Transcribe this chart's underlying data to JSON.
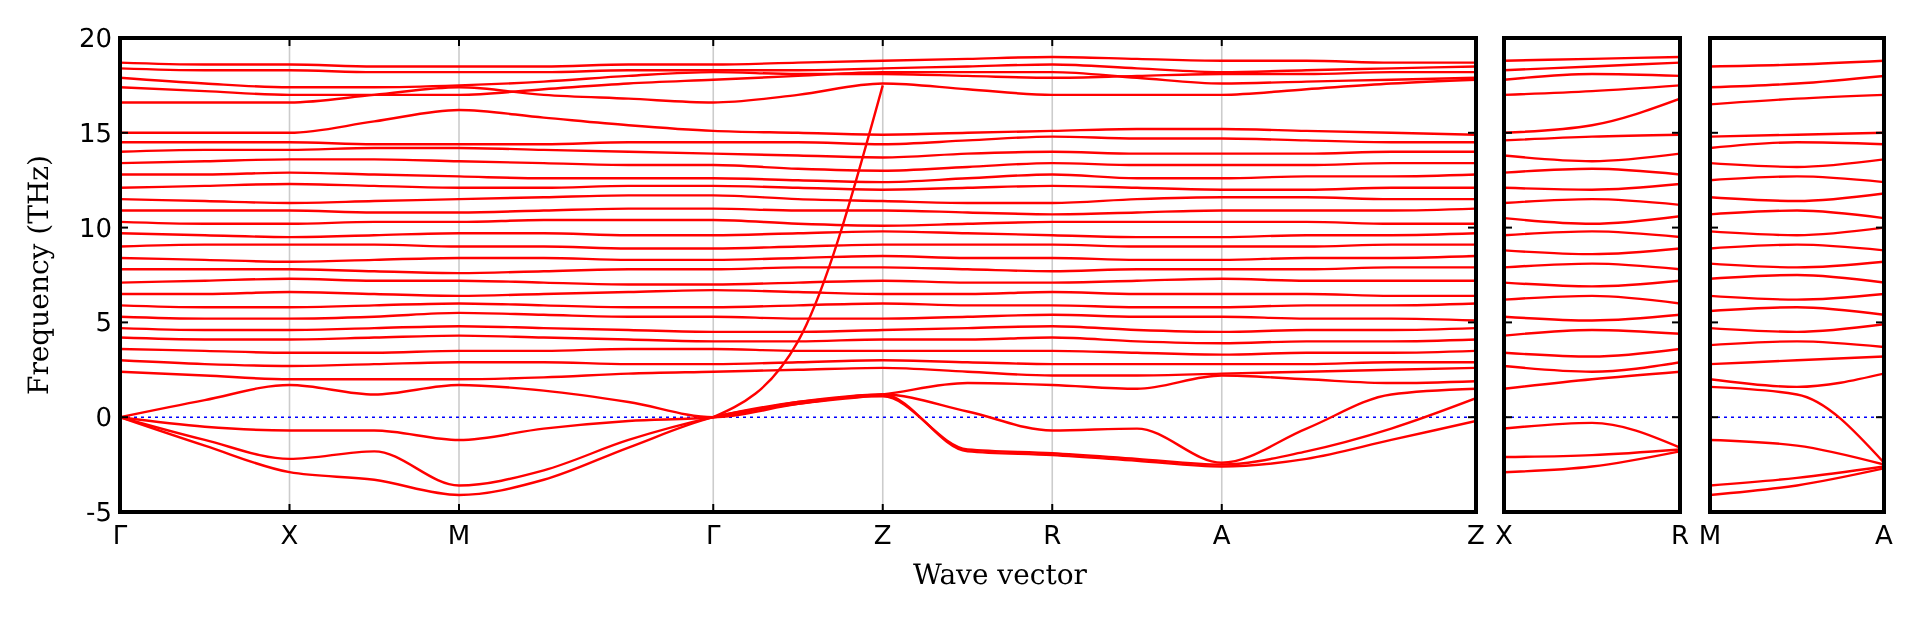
{
  "chart_data": [
    {
      "type": "line",
      "xlabel": "Wave vector",
      "ylabel": "Frequency (THz)",
      "ylim": [
        -5,
        20
      ],
      "yticks": [
        -5,
        0,
        5,
        10,
        15,
        20
      ],
      "categories": [
        "Γ",
        null,
        "X",
        null,
        "M",
        null,
        null,
        "Γ",
        null,
        "Z",
        null,
        "R",
        null,
        "A",
        null,
        null,
        "Z"
      ],
      "grid": "x",
      "ref_lines": [
        {
          "axis": "y",
          "value": 0,
          "color": "#0000ff",
          "line_style": "dotted"
        }
      ],
      "series": [
        {
          "color": "#ff0000",
          "values": [
            18.7,
            18.6,
            18.6,
            18.5,
            18.5,
            18.5,
            18.6,
            18.6,
            18.7,
            18.8,
            18.9,
            19.0,
            18.9,
            18.8,
            18.8,
            18.7,
            18.7
          ]
        },
        {
          "color": "#ff0000",
          "values": [
            18.4,
            18.3,
            18.3,
            18.2,
            18.2,
            18.2,
            18.3,
            18.3,
            18.3,
            18.4,
            18.5,
            18.6,
            18.4,
            18.2,
            18.3,
            18.4,
            18.5
          ]
        },
        {
          "color": "#ff0000",
          "values": [
            17.9,
            17.6,
            17.4,
            17.4,
            17.5,
            17.7,
            18.0,
            18.2,
            18.1,
            18.1,
            18.0,
            17.9,
            18.0,
            18.1,
            18.1,
            18.2,
            18.2
          ]
        },
        {
          "color": "#ff0000",
          "values": [
            17.4,
            17.2,
            17.0,
            17.0,
            17.0,
            17.3,
            17.6,
            17.8,
            18.0,
            18.2,
            18.2,
            18.2,
            17.9,
            17.6,
            17.7,
            17.8,
            17.9
          ]
        },
        {
          "color": "#ff0000",
          "values": [
            16.6,
            16.6,
            16.6,
            17.0,
            17.4,
            17.0,
            16.8,
            16.6,
            17.0,
            17.6,
            17.3,
            17.0,
            17.0,
            17.0,
            17.3,
            17.6,
            17.8
          ]
        },
        {
          "color": "#ff0000",
          "values": [
            15.0,
            15.0,
            15.0,
            15.6,
            16.2,
            15.8,
            15.4,
            15.1,
            15.0,
            14.9,
            15.0,
            15.1,
            15.2,
            15.2,
            15.1,
            15.0,
            14.9
          ]
        },
        {
          "color": "#ff0000",
          "values": [
            14.5,
            14.5,
            14.5,
            14.4,
            14.4,
            14.4,
            14.5,
            14.5,
            14.5,
            14.4,
            14.6,
            14.8,
            14.7,
            14.7,
            14.6,
            14.5,
            14.5
          ]
        },
        {
          "color": "#ff0000",
          "values": [
            14.0,
            14.1,
            14.1,
            14.2,
            14.2,
            14.1,
            14.0,
            13.9,
            13.8,
            13.7,
            13.9,
            14.0,
            13.9,
            13.9,
            13.9,
            14.0,
            14.0
          ]
        },
        {
          "color": "#ff0000",
          "values": [
            13.4,
            13.5,
            13.6,
            13.6,
            13.5,
            13.4,
            13.3,
            13.3,
            13.1,
            13.0,
            13.2,
            13.4,
            13.3,
            13.3,
            13.3,
            13.4,
            13.4
          ]
        },
        {
          "color": "#ff0000",
          "values": [
            12.8,
            12.8,
            12.9,
            12.8,
            12.7,
            12.6,
            12.6,
            12.6,
            12.5,
            12.4,
            12.6,
            12.8,
            12.6,
            12.6,
            12.7,
            12.7,
            12.8
          ]
        },
        {
          "color": "#ff0000",
          "values": [
            12.1,
            12.2,
            12.3,
            12.2,
            12.1,
            12.1,
            12.2,
            12.2,
            12.1,
            12.0,
            12.1,
            12.2,
            12.1,
            12.0,
            12.0,
            12.1,
            12.1
          ]
        },
        {
          "color": "#ff0000",
          "values": [
            11.5,
            11.4,
            11.3,
            11.4,
            11.5,
            11.6,
            11.7,
            11.7,
            11.5,
            11.4,
            11.3,
            11.3,
            11.5,
            11.6,
            11.6,
            11.5,
            11.5
          ]
        },
        {
          "color": "#ff0000",
          "values": [
            10.9,
            10.9,
            10.9,
            10.8,
            10.8,
            10.9,
            11.0,
            11.0,
            10.9,
            10.9,
            10.8,
            10.7,
            10.8,
            10.9,
            10.9,
            10.9,
            11.0
          ]
        },
        {
          "color": "#ff0000",
          "values": [
            10.3,
            10.2,
            10.2,
            10.3,
            10.3,
            10.4,
            10.4,
            10.4,
            10.2,
            10.1,
            10.2,
            10.3,
            10.3,
            10.3,
            10.3,
            10.2,
            10.2
          ]
        },
        {
          "color": "#ff0000",
          "values": [
            9.7,
            9.6,
            9.5,
            9.6,
            9.7,
            9.7,
            9.6,
            9.6,
            9.7,
            9.8,
            9.7,
            9.6,
            9.5,
            9.5,
            9.6,
            9.6,
            9.7
          ]
        },
        {
          "color": "#ff0000",
          "values": [
            9.0,
            9.1,
            9.1,
            9.1,
            9.0,
            9.0,
            8.9,
            8.9,
            9.0,
            9.1,
            9.1,
            9.1,
            9.0,
            9.0,
            9.0,
            9.1,
            9.1
          ]
        },
        {
          "color": "#ff0000",
          "values": [
            8.4,
            8.3,
            8.2,
            8.3,
            8.4,
            8.4,
            8.3,
            8.3,
            8.4,
            8.5,
            8.4,
            8.4,
            8.3,
            8.3,
            8.4,
            8.4,
            8.5
          ]
        },
        {
          "color": "#ff0000",
          "values": [
            7.8,
            7.8,
            7.8,
            7.7,
            7.6,
            7.7,
            7.8,
            7.8,
            7.9,
            7.9,
            7.8,
            7.7,
            7.8,
            7.8,
            7.8,
            7.9,
            7.9
          ]
        },
        {
          "color": "#ff0000",
          "values": [
            7.1,
            7.2,
            7.3,
            7.2,
            7.2,
            7.1,
            7.0,
            7.0,
            7.1,
            7.2,
            7.1,
            7.1,
            7.2,
            7.3,
            7.2,
            7.2,
            7.2
          ]
        },
        {
          "color": "#ff0000",
          "values": [
            6.5,
            6.5,
            6.6,
            6.5,
            6.4,
            6.5,
            6.6,
            6.7,
            6.6,
            6.5,
            6.5,
            6.6,
            6.5,
            6.5,
            6.5,
            6.4,
            6.4
          ]
        },
        {
          "color": "#ff0000",
          "values": [
            5.9,
            5.8,
            5.8,
            5.9,
            6.0,
            5.9,
            5.8,
            5.8,
            5.9,
            6.0,
            5.9,
            5.9,
            5.8,
            5.8,
            5.9,
            5.9,
            6.0
          ]
        },
        {
          "color": "#ff0000",
          "values": [
            5.3,
            5.2,
            5.2,
            5.3,
            5.5,
            5.4,
            5.3,
            5.3,
            5.2,
            5.2,
            5.3,
            5.4,
            5.3,
            5.3,
            5.2,
            5.2,
            5.1
          ]
        },
        {
          "color": "#ff0000",
          "values": [
            4.7,
            4.6,
            4.6,
            4.7,
            4.8,
            4.7,
            4.6,
            4.5,
            4.5,
            4.6,
            4.7,
            4.8,
            4.6,
            4.5,
            4.6,
            4.6,
            4.7
          ]
        },
        {
          "color": "#ff0000",
          "values": [
            4.2,
            4.1,
            4.1,
            4.2,
            4.3,
            4.2,
            4.1,
            4.0,
            4.0,
            4.1,
            4.1,
            4.2,
            4.0,
            3.9,
            4.0,
            4.0,
            4.1
          ]
        },
        {
          "color": "#ff0000",
          "values": [
            3.6,
            3.5,
            3.4,
            3.4,
            3.5,
            3.5,
            3.6,
            3.6,
            3.5,
            3.5,
            3.5,
            3.5,
            3.4,
            3.3,
            3.4,
            3.4,
            3.5
          ]
        },
        {
          "color": "#ff0000",
          "values": [
            3.0,
            2.8,
            2.7,
            2.8,
            2.9,
            2.9,
            2.8,
            2.8,
            2.9,
            3.0,
            2.9,
            2.8,
            2.8,
            2.8,
            2.8,
            2.9,
            2.9
          ]
        },
        {
          "color": "#ff0000",
          "values": [
            2.4,
            2.2,
            2.0,
            2.0,
            2.0,
            2.1,
            2.3,
            2.4,
            2.5,
            2.6,
            2.4,
            2.2,
            2.2,
            2.3,
            2.4,
            2.5,
            2.6
          ]
        },
        {
          "color": "#ff0000",
          "values": [
            null,
            null,
            null,
            null,
            null,
            null,
            null,
            0,
            4,
            17.5,
            null,
            null,
            null,
            null,
            null,
            null,
            null
          ]
        },
        {
          "color": "#ff0000",
          "values": [
            0,
            0.9,
            1.7,
            1.2,
            1.7,
            1.4,
            0.8,
            0,
            0.7,
            1.2,
            1.8,
            1.7,
            1.5,
            2.2,
            2.0,
            1.8,
            1.9
          ]
        },
        {
          "color": "#ff0000",
          "values": [
            0,
            -0.5,
            -0.7,
            -0.7,
            -1.2,
            -0.6,
            -0.2,
            0,
            0.8,
            1.2,
            0.3,
            -0.7,
            -0.6,
            -2.4,
            -0.6,
            1.2,
            1.5
          ]
        },
        {
          "color": "#ff0000",
          "values": [
            0,
            -1.2,
            -2.2,
            -1.8,
            -3.6,
            -2.8,
            -1.2,
            0,
            0.8,
            1.1,
            -1.7,
            -1.9,
            -2.2,
            -2.5,
            -1.8,
            -0.6,
            1.0
          ]
        },
        {
          "color": "#ff0000",
          "values": [
            0,
            -1.5,
            -2.9,
            -3.3,
            -4.1,
            -3.3,
            -1.6,
            0,
            0.7,
            1.2,
            -1.8,
            -2.0,
            -2.3,
            -2.6,
            -2.2,
            -1.2,
            -0.2
          ]
        }
      ]
    },
    {
      "type": "line",
      "ylim": [
        -5,
        20
      ],
      "yticks": [
        -5,
        0,
        5,
        10,
        15,
        20
      ],
      "tick_labels": "x",
      "categories": [
        "X",
        null,
        "R"
      ],
      "ref_lines": [
        {
          "axis": "y",
          "value": 0,
          "color": "#0000ff",
          "line_style": "dotted"
        }
      ],
      "series": [
        {
          "color": "#ff0000",
          "values": [
            18.8,
            18.9,
            19.0
          ]
        },
        {
          "color": "#ff0000",
          "values": [
            18.3,
            18.5,
            18.7
          ]
        },
        {
          "color": "#ff0000",
          "values": [
            17.8,
            18.1,
            18.0
          ]
        },
        {
          "color": "#ff0000",
          "values": [
            17.0,
            17.2,
            17.5
          ]
        },
        {
          "color": "#ff0000",
          "values": [
            15.0,
            15.4,
            16.8
          ]
        },
        {
          "color": "#ff0000",
          "values": [
            14.6,
            14.8,
            14.9
          ]
        },
        {
          "color": "#ff0000",
          "values": [
            13.8,
            13.5,
            13.9
          ]
        },
        {
          "color": "#ff0000",
          "values": [
            12.9,
            13.1,
            12.8
          ]
        },
        {
          "color": "#ff0000",
          "values": [
            12.1,
            12.0,
            12.3
          ]
        },
        {
          "color": "#ff0000",
          "values": [
            11.3,
            11.5,
            11.2
          ]
        },
        {
          "color": "#ff0000",
          "values": [
            10.5,
            10.2,
            10.6
          ]
        },
        {
          "color": "#ff0000",
          "values": [
            9.6,
            9.8,
            9.5
          ]
        },
        {
          "color": "#ff0000",
          "values": [
            8.8,
            8.6,
            8.9
          ]
        },
        {
          "color": "#ff0000",
          "values": [
            7.9,
            8.1,
            7.8
          ]
        },
        {
          "color": "#ff0000",
          "values": [
            7.1,
            6.9,
            7.2
          ]
        },
        {
          "color": "#ff0000",
          "values": [
            6.2,
            6.4,
            6.0
          ]
        },
        {
          "color": "#ff0000",
          "values": [
            5.3,
            5.1,
            5.4
          ]
        },
        {
          "color": "#ff0000",
          "values": [
            4.3,
            4.6,
            4.4
          ]
        },
        {
          "color": "#ff0000",
          "values": [
            3.4,
            3.2,
            3.6
          ]
        },
        {
          "color": "#ff0000",
          "values": [
            2.7,
            2.4,
            2.9
          ]
        },
        {
          "color": "#ff0000",
          "values": [
            1.5,
            2.0,
            2.4
          ]
        },
        {
          "color": "#ff0000",
          "values": [
            -0.6,
            -0.3,
            -1.6
          ]
        },
        {
          "color": "#ff0000",
          "values": [
            -2.1,
            -2.0,
            -1.7
          ]
        },
        {
          "color": "#ff0000",
          "values": [
            -2.9,
            -2.6,
            -1.8
          ]
        }
      ]
    },
    {
      "type": "line",
      "ylim": [
        -5,
        20
      ],
      "yticks": [
        -5,
        0,
        5,
        10,
        15,
        20
      ],
      "tick_labels": "x",
      "categories": [
        "M",
        null,
        "A"
      ],
      "ref_lines": [
        {
          "axis": "y",
          "value": 0,
          "color": "#0000ff",
          "line_style": "dotted"
        }
      ],
      "series": [
        {
          "color": "#ff0000",
          "values": [
            18.5,
            18.6,
            18.8
          ]
        },
        {
          "color": "#ff0000",
          "values": [
            17.4,
            17.6,
            18.0
          ]
        },
        {
          "color": "#ff0000",
          "values": [
            16.5,
            16.8,
            17.0
          ]
        },
        {
          "color": "#ff0000",
          "values": [
            14.8,
            14.9,
            15.0
          ]
        },
        {
          "color": "#ff0000",
          "values": [
            14.2,
            14.5,
            14.4
          ]
        },
        {
          "color": "#ff0000",
          "values": [
            13.4,
            13.2,
            13.6
          ]
        },
        {
          "color": "#ff0000",
          "values": [
            12.5,
            12.7,
            12.4
          ]
        },
        {
          "color": "#ff0000",
          "values": [
            11.6,
            11.4,
            11.8
          ]
        },
        {
          "color": "#ff0000",
          "values": [
            10.7,
            10.9,
            10.5
          ]
        },
        {
          "color": "#ff0000",
          "values": [
            9.8,
            9.6,
            10.0
          ]
        },
        {
          "color": "#ff0000",
          "values": [
            8.9,
            9.1,
            8.8
          ]
        },
        {
          "color": "#ff0000",
          "values": [
            8.1,
            7.9,
            8.2
          ]
        },
        {
          "color": "#ff0000",
          "values": [
            7.3,
            7.5,
            7.1
          ]
        },
        {
          "color": "#ff0000",
          "values": [
            6.4,
            6.2,
            6.5
          ]
        },
        {
          "color": "#ff0000",
          "values": [
            5.6,
            5.8,
            5.4
          ]
        },
        {
          "color": "#ff0000",
          "values": [
            4.7,
            4.5,
            4.9
          ]
        },
        {
          "color": "#ff0000",
          "values": [
            3.8,
            4.0,
            3.7
          ]
        },
        {
          "color": "#ff0000",
          "values": [
            2.8,
            3.0,
            3.2
          ]
        },
        {
          "color": "#ff0000",
          "values": [
            2.0,
            1.6,
            2.3
          ]
        },
        {
          "color": "#ff0000",
          "values": [
            1.6,
            1.2,
            -2.4
          ]
        },
        {
          "color": "#ff0000",
          "values": [
            -1.2,
            -1.5,
            -2.5
          ]
        },
        {
          "color": "#ff0000",
          "values": [
            -3.6,
            -3.2,
            -2.6
          ]
        },
        {
          "color": "#ff0000",
          "values": [
            -4.1,
            -3.6,
            -2.7
          ]
        }
      ]
    }
  ]
}
